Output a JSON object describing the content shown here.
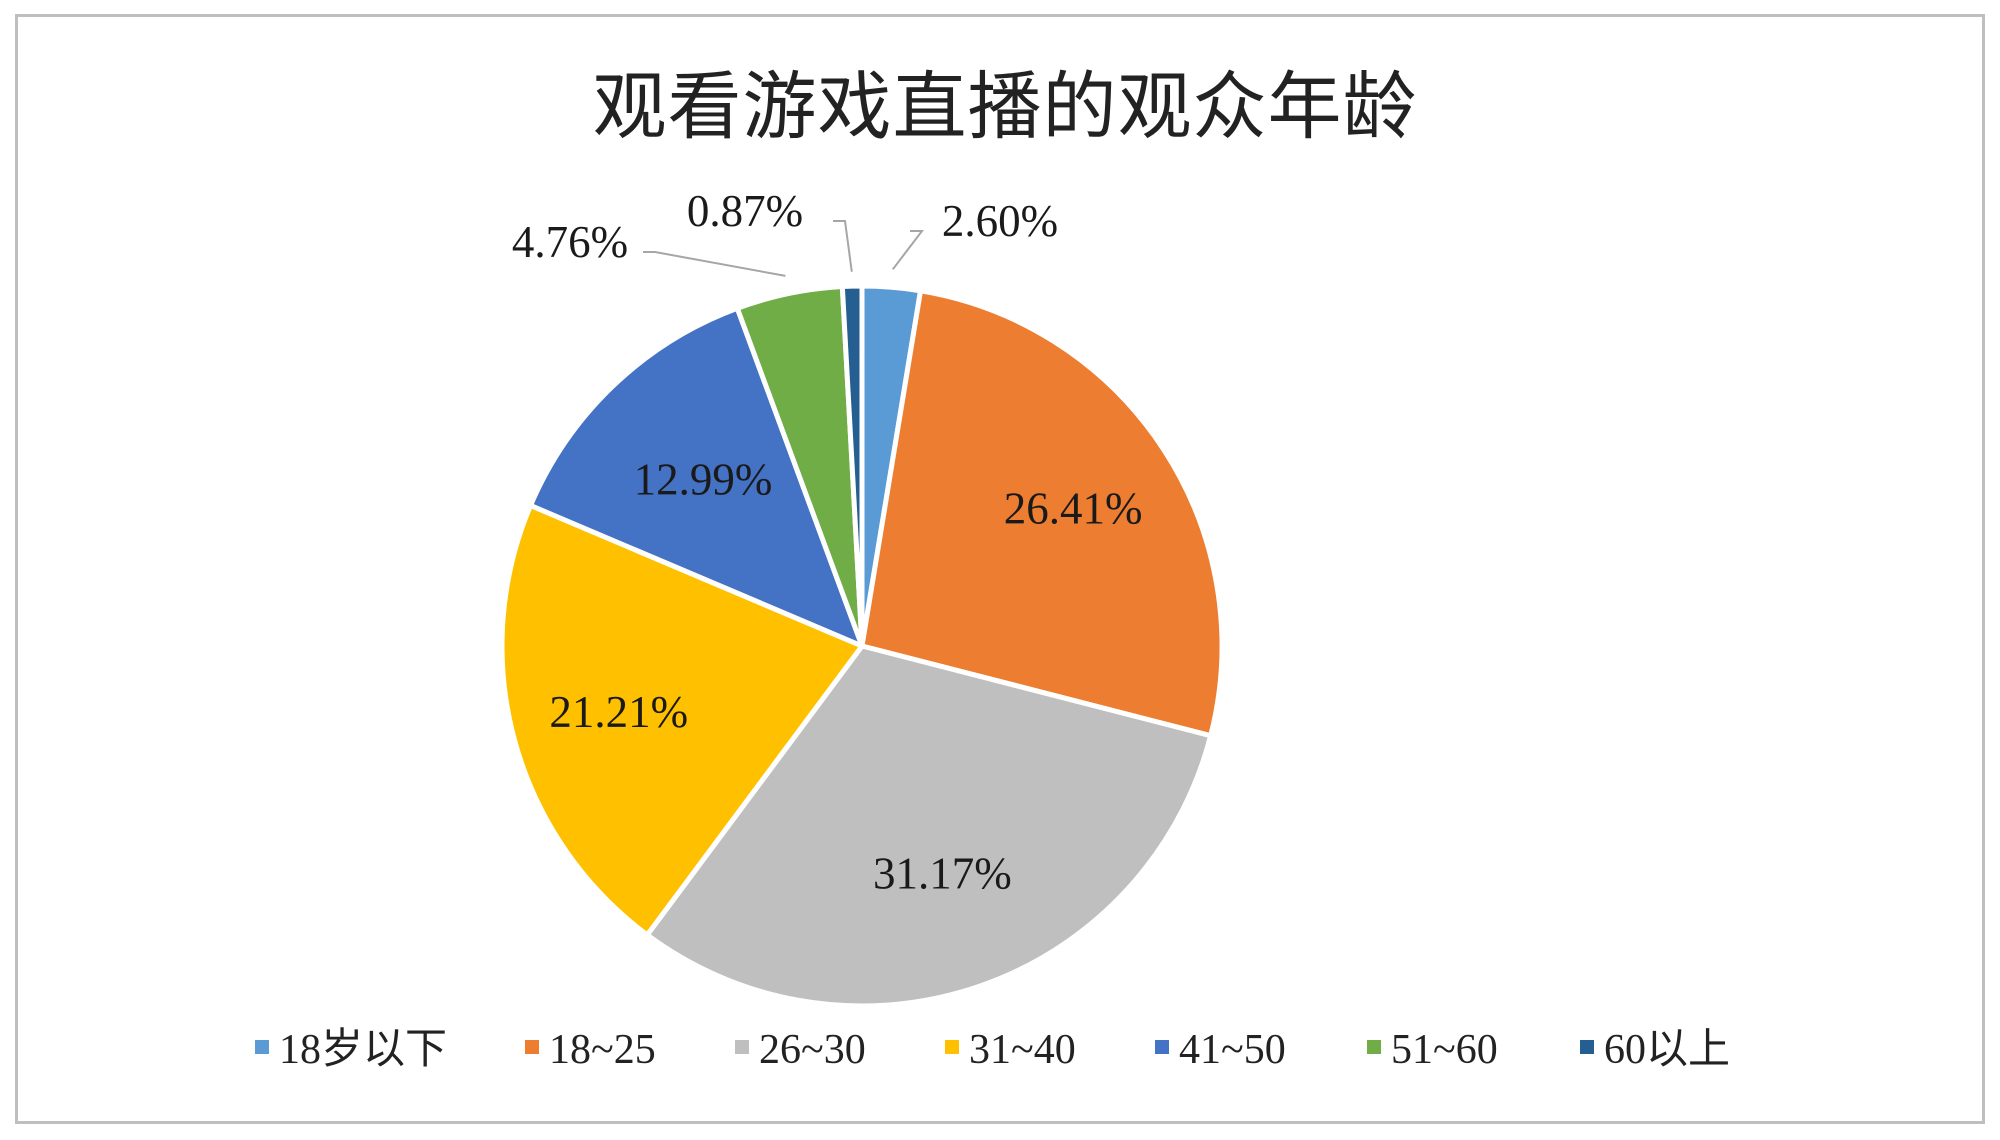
{
  "chart_data": {
    "type": "pie",
    "title": "观看游戏直播的观众年龄",
    "categories": [
      "18岁以下",
      "18~25",
      "26~30",
      "31~40",
      "41~50",
      "51~60",
      "60以上"
    ],
    "values": [
      2.6,
      26.41,
      31.17,
      21.21,
      12.99,
      4.76,
      0.87
    ],
    "data_labels": [
      "2.60%",
      "26.41%",
      "31.17%",
      "21.21%",
      "12.99%",
      "4.76%",
      "0.87%"
    ],
    "colors": [
      "#5B9BD5",
      "#ED7D31",
      "#BFBFBF",
      "#FFC000",
      "#4472C4",
      "#70AD47",
      "#255E91"
    ],
    "start_angle": "12 o'clock",
    "direction": "clockwise",
    "legend_position": "bottom",
    "legend": [
      "18岁以下",
      "18~25",
      "26~30",
      "31~40",
      "41~50",
      "51~60",
      "60以上"
    ]
  }
}
